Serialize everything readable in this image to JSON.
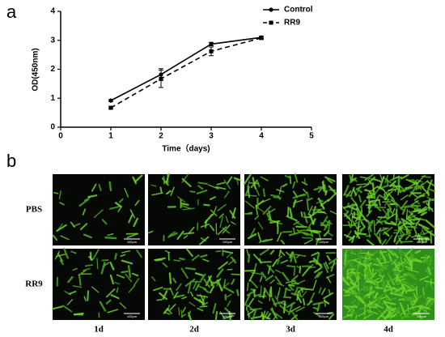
{
  "chart_data": {
    "type": "line",
    "panel_label": "a",
    "x": [
      1,
      2,
      3,
      4
    ],
    "xlim": [
      0,
      5
    ],
    "xticks": [
      0,
      1,
      2,
      3,
      4,
      5
    ],
    "ylim": [
      0,
      4
    ],
    "yticks": [
      0,
      1,
      2,
      3,
      4
    ],
    "xlabel": "Time（days)",
    "ylabel": "OD(450nm)",
    "legend": "upper right",
    "series": [
      {
        "name": "Control",
        "color": "#000000",
        "marker": "circle",
        "linestyle": "solid",
        "values": [
          0.92,
          1.82,
          2.87,
          3.1
        ],
        "errors": [
          0.03,
          0.2,
          0.06,
          0.04
        ]
      },
      {
        "name": "RR9",
        "color": "#000000",
        "marker": "square",
        "linestyle": "dashed",
        "values": [
          0.67,
          1.67,
          2.62,
          3.08
        ],
        "errors": [
          0.03,
          0.3,
          0.15,
          0.05
        ]
      }
    ]
  },
  "images": {
    "panel_label": "b",
    "rows": [
      "PBS",
      "RR9"
    ],
    "columns": [
      "1d",
      "2d",
      "3d",
      "4d"
    ],
    "scale_bar": "100μm"
  }
}
